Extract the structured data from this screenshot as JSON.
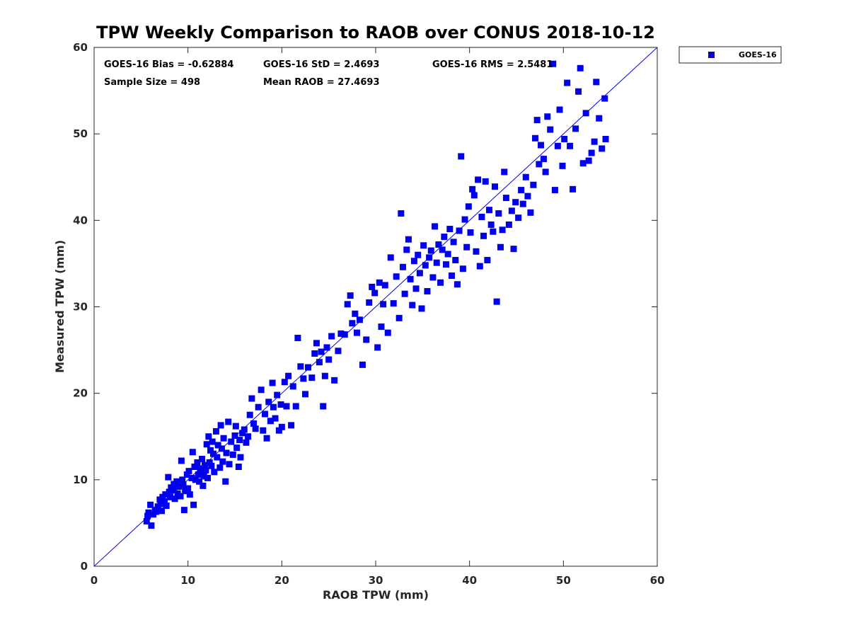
{
  "chart_data": {
    "type": "scatter",
    "title": "TPW Weekly Comparison to RAOB over CONUS 2018-10-12",
    "xlabel": "RAOB TPW (mm)",
    "ylabel": "Measured TPW (mm)",
    "xlim": [
      0,
      60
    ],
    "ylim": [
      0,
      60
    ],
    "xticks": [
      "0",
      "10",
      "20",
      "30",
      "40",
      "50",
      "60"
    ],
    "yticks": [
      "0",
      "10",
      "20",
      "30",
      "40",
      "50",
      "60"
    ],
    "grid": false,
    "legend_position": "outside-top-right",
    "marker_color": "#0000ee",
    "reference_line": {
      "x": [
        0,
        60
      ],
      "y": [
        0,
        60
      ],
      "color": "#0000ee"
    },
    "stats": {
      "bias": "GOES-16 Bias = -0.62884",
      "std": "GOES-16 StD = 2.4693",
      "rms": "GOES-16 RMS = 2.5481",
      "sample_size": "Sample Size = 498",
      "mean_raob": "Mean RAOB = 27.4693"
    },
    "series": [
      {
        "name": "GOES-16",
        "points": [
          [
            5.6,
            5.2
          ],
          [
            5.7,
            5.8
          ],
          [
            5.8,
            6.2
          ],
          [
            6.0,
            7.1
          ],
          [
            6.1,
            4.7
          ],
          [
            6.3,
            6.0
          ],
          [
            6.5,
            6.5
          ],
          [
            6.6,
            6.3
          ],
          [
            6.8,
            6.9
          ],
          [
            7.0,
            7.7
          ],
          [
            7.1,
            7.2
          ],
          [
            7.2,
            6.4
          ],
          [
            7.3,
            8.0
          ],
          [
            7.5,
            7.5
          ],
          [
            7.6,
            8.3
          ],
          [
            7.7,
            7.0
          ],
          [
            7.9,
            10.3
          ],
          [
            8.0,
            8.6
          ],
          [
            8.1,
            8.0
          ],
          [
            8.2,
            9.1
          ],
          [
            8.4,
            8.8
          ],
          [
            8.5,
            9.5
          ],
          [
            8.6,
            7.8
          ],
          [
            8.8,
            9.8
          ],
          [
            8.9,
            8.4
          ],
          [
            9.0,
            9.2
          ],
          [
            9.2,
            8.1
          ],
          [
            9.3,
            12.2
          ],
          [
            9.4,
            10.0
          ],
          [
            9.5,
            9.4
          ],
          [
            9.6,
            6.5
          ],
          [
            9.7,
            8.7
          ],
          [
            9.9,
            10.6
          ],
          [
            10.0,
            9.0
          ],
          [
            10.1,
            11.0
          ],
          [
            10.2,
            8.3
          ],
          [
            10.4,
            10.2
          ],
          [
            10.5,
            13.2
          ],
          [
            10.6,
            7.1
          ],
          [
            10.7,
            11.5
          ],
          [
            10.8,
            10.0
          ],
          [
            11.0,
            12.0
          ],
          [
            11.1,
            10.6
          ],
          [
            11.2,
            9.8
          ],
          [
            11.3,
            11.3
          ],
          [
            11.4,
            10.9
          ],
          [
            11.5,
            12.4
          ],
          [
            11.6,
            9.3
          ],
          [
            11.7,
            10.4
          ],
          [
            11.8,
            11.7
          ],
          [
            11.9,
            11.1
          ],
          [
            12.0,
            14.1
          ],
          [
            12.1,
            10.2
          ],
          [
            12.2,
            15.0
          ],
          [
            12.3,
            12.0
          ],
          [
            12.4,
            13.4
          ],
          [
            12.5,
            11.6
          ],
          [
            12.6,
            14.4
          ],
          [
            12.7,
            13.0
          ],
          [
            12.8,
            10.9
          ],
          [
            13.0,
            15.6
          ],
          [
            13.1,
            12.6
          ],
          [
            13.2,
            14.0
          ],
          [
            13.4,
            11.4
          ],
          [
            13.5,
            16.3
          ],
          [
            13.6,
            13.6
          ],
          [
            13.7,
            12.1
          ],
          [
            13.8,
            14.8
          ],
          [
            14.0,
            9.8
          ],
          [
            14.1,
            13.1
          ],
          [
            14.3,
            16.7
          ],
          [
            14.4,
            11.8
          ],
          [
            14.6,
            14.4
          ],
          [
            14.8,
            12.9
          ],
          [
            15.0,
            15.1
          ],
          [
            15.1,
            16.2
          ],
          [
            15.2,
            13.7
          ],
          [
            15.4,
            11.5
          ],
          [
            15.5,
            14.6
          ],
          [
            15.6,
            12.6
          ],
          [
            15.8,
            15.4
          ],
          [
            16.0,
            15.8
          ],
          [
            16.2,
            14.3
          ],
          [
            16.4,
            15.0
          ],
          [
            16.6,
            17.5
          ],
          [
            16.8,
            19.4
          ],
          [
            17.0,
            16.5
          ],
          [
            17.2,
            15.9
          ],
          [
            17.5,
            18.4
          ],
          [
            17.8,
            20.4
          ],
          [
            18.0,
            15.7
          ],
          [
            18.2,
            17.6
          ],
          [
            18.4,
            14.8
          ],
          [
            18.6,
            19.0
          ],
          [
            18.8,
            16.8
          ],
          [
            19.0,
            21.2
          ],
          [
            19.1,
            18.4
          ],
          [
            19.3,
            17.1
          ],
          [
            19.5,
            19.8
          ],
          [
            19.7,
            15.7
          ],
          [
            19.9,
            18.7
          ],
          [
            20.0,
            16.1
          ],
          [
            20.3,
            21.3
          ],
          [
            20.5,
            18.5
          ],
          [
            20.7,
            22.0
          ],
          [
            21.0,
            16.3
          ],
          [
            21.2,
            20.8
          ],
          [
            21.5,
            18.5
          ],
          [
            21.7,
            26.4
          ],
          [
            22.0,
            23.1
          ],
          [
            22.3,
            21.7
          ],
          [
            22.5,
            19.9
          ],
          [
            22.8,
            23.0
          ],
          [
            23.2,
            21.8
          ],
          [
            23.5,
            24.6
          ],
          [
            23.7,
            25.8
          ],
          [
            24.0,
            23.6
          ],
          [
            24.2,
            24.8
          ],
          [
            24.4,
            18.5
          ],
          [
            24.6,
            22.0
          ],
          [
            24.8,
            25.3
          ],
          [
            25.0,
            23.9
          ],
          [
            25.3,
            26.6
          ],
          [
            25.6,
            21.5
          ],
          [
            26.0,
            24.9
          ],
          [
            26.3,
            26.9
          ],
          [
            26.7,
            26.8
          ],
          [
            27.0,
            30.3
          ],
          [
            27.3,
            31.3
          ],
          [
            27.5,
            28.1
          ],
          [
            27.8,
            29.2
          ],
          [
            28.0,
            27.0
          ],
          [
            28.3,
            28.5
          ],
          [
            28.6,
            23.3
          ],
          [
            29.0,
            26.2
          ],
          [
            29.3,
            30.5
          ],
          [
            29.6,
            32.3
          ],
          [
            29.9,
            31.6
          ],
          [
            30.2,
            25.3
          ],
          [
            30.4,
            32.8
          ],
          [
            30.6,
            27.7
          ],
          [
            30.8,
            30.3
          ],
          [
            31.0,
            32.5
          ],
          [
            31.3,
            27.0
          ],
          [
            31.6,
            35.7
          ],
          [
            31.9,
            30.4
          ],
          [
            32.2,
            33.5
          ],
          [
            32.5,
            28.7
          ],
          [
            32.7,
            40.8
          ],
          [
            32.9,
            34.6
          ],
          [
            33.1,
            31.5
          ],
          [
            33.3,
            36.6
          ],
          [
            33.5,
            37.8
          ],
          [
            33.7,
            33.2
          ],
          [
            33.9,
            30.2
          ],
          [
            34.1,
            35.3
          ],
          [
            34.3,
            32.1
          ],
          [
            34.5,
            36.0
          ],
          [
            34.7,
            33.9
          ],
          [
            34.9,
            29.8
          ],
          [
            35.1,
            37.1
          ],
          [
            35.3,
            34.8
          ],
          [
            35.5,
            31.8
          ],
          [
            35.7,
            35.7
          ],
          [
            35.9,
            36.5
          ],
          [
            36.1,
            33.4
          ],
          [
            36.3,
            39.3
          ],
          [
            36.5,
            35.1
          ],
          [
            36.7,
            37.2
          ],
          [
            36.9,
            32.8
          ],
          [
            37.1,
            36.6
          ],
          [
            37.3,
            38.1
          ],
          [
            37.5,
            34.9
          ],
          [
            37.7,
            36.1
          ],
          [
            37.9,
            39.0
          ],
          [
            38.1,
            33.6
          ],
          [
            38.3,
            37.5
          ],
          [
            38.5,
            35.4
          ],
          [
            38.7,
            32.6
          ],
          [
            38.9,
            38.8
          ],
          [
            39.1,
            47.4
          ],
          [
            39.3,
            34.4
          ],
          [
            39.5,
            40.1
          ],
          [
            39.7,
            36.9
          ],
          [
            39.9,
            41.6
          ],
          [
            40.1,
            38.6
          ],
          [
            40.3,
            43.6
          ],
          [
            40.5,
            42.9
          ],
          [
            40.7,
            36.4
          ],
          [
            40.9,
            44.7
          ],
          [
            41.1,
            34.7
          ],
          [
            41.3,
            40.4
          ],
          [
            41.5,
            38.2
          ],
          [
            41.7,
            44.5
          ],
          [
            41.9,
            35.4
          ],
          [
            42.1,
            41.2
          ],
          [
            42.3,
            39.5
          ],
          [
            42.5,
            38.7
          ],
          [
            42.7,
            43.9
          ],
          [
            42.9,
            30.6
          ],
          [
            43.1,
            40.8
          ],
          [
            43.3,
            36.9
          ],
          [
            43.5,
            38.9
          ],
          [
            43.7,
            45.6
          ],
          [
            43.9,
            42.6
          ],
          [
            44.2,
            39.5
          ],
          [
            44.5,
            41.1
          ],
          [
            44.7,
            36.7
          ],
          [
            44.9,
            42.1
          ],
          [
            45.2,
            40.3
          ],
          [
            45.5,
            43.5
          ],
          [
            45.7,
            41.9
          ],
          [
            46.0,
            45.0
          ],
          [
            46.2,
            42.8
          ],
          [
            46.5,
            40.9
          ],
          [
            46.8,
            44.1
          ],
          [
            47.0,
            49.5
          ],
          [
            47.2,
            51.6
          ],
          [
            47.4,
            46.5
          ],
          [
            47.6,
            48.7
          ],
          [
            47.9,
            47.1
          ],
          [
            48.1,
            45.6
          ],
          [
            48.3,
            52.0
          ],
          [
            48.6,
            50.5
          ],
          [
            48.9,
            58.1
          ],
          [
            49.1,
            43.5
          ],
          [
            49.4,
            48.6
          ],
          [
            49.6,
            52.8
          ],
          [
            49.9,
            46.3
          ],
          [
            50.1,
            49.4
          ],
          [
            50.4,
            55.9
          ],
          [
            50.7,
            48.6
          ],
          [
            51.0,
            43.6
          ],
          [
            51.3,
            50.6
          ],
          [
            51.6,
            54.9
          ],
          [
            51.8,
            57.6
          ],
          [
            52.1,
            46.6
          ],
          [
            52.4,
            52.4
          ],
          [
            52.7,
            46.9
          ],
          [
            53.0,
            47.8
          ],
          [
            53.3,
            49.1
          ],
          [
            53.5,
            56.0
          ],
          [
            53.8,
            51.8
          ],
          [
            54.1,
            48.3
          ],
          [
            54.4,
            54.1
          ],
          [
            54.5,
            49.4
          ]
        ]
      }
    ]
  }
}
